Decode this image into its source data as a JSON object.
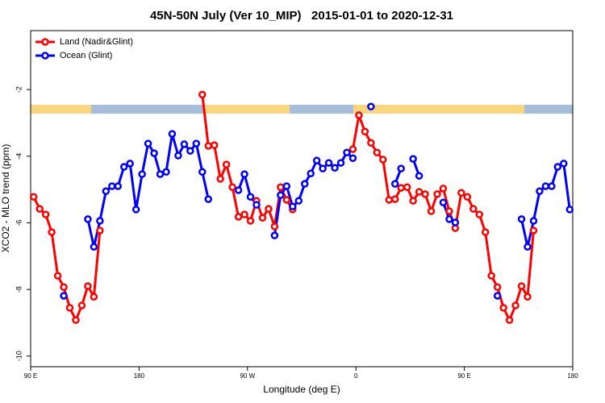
{
  "chart_data": {
    "type": "line",
    "title": "45N-50N July (Ver 10_MIP)   2015-01-01 to 2020-12-31",
    "x_label": "Longitude (deg E)",
    "y_label": "XCO2 - MLO trend (ppm)",
    "legend": "top-left",
    "grid": false,
    "xlim": [
      90,
      540
    ],
    "xticks": [
      {
        "value": 90,
        "label": "90 E"
      },
      180,
      {
        "value": 270,
        "label": "90 W"
      },
      {
        "value": 360,
        "label": "0"
      },
      {
        "value": 450,
        "label": "90 E"
      },
      {
        "value": 540,
        "label": "180"
      }
    ],
    "ylim": [
      -10.32,
      -0.23
    ],
    "yticks": [
      -2,
      -4,
      -6,
      -8,
      -10
    ],
    "x": [
      92.5,
      97.5,
      102.5,
      107.5,
      112.5,
      117.5,
      122.5,
      127.5,
      132.5,
      137.5,
      142.5,
      147.5,
      152.5,
      157.5,
      162.5,
      167.5,
      172.5,
      177.5,
      182.5,
      187.5,
      192.5,
      197.5,
      202.5,
      207.5,
      212.5,
      217.5,
      222.5,
      227.5,
      232.5,
      237.5,
      242.5,
      247.5,
      252.5,
      257.5,
      262.5,
      267.5,
      272.5,
      277.5,
      282.5,
      287.5,
      292.5,
      297.5,
      302.5,
      307.5,
      312.5,
      317.5,
      322.5,
      327.5,
      332.5,
      337.5,
      342.5,
      347.5,
      352.5,
      357.5,
      362.5,
      367.5,
      372.5,
      377.5,
      382.5,
      387.5,
      392.5,
      397.5,
      402.5,
      407.5,
      412.5,
      417.5,
      422.5,
      427.5,
      432.5,
      437.5,
      442.5,
      447.5,
      452.5,
      457.5,
      462.5,
      467.5,
      472.5,
      477.5,
      482.5,
      487.5,
      492.5,
      497.5,
      502.5,
      507.5,
      512.5,
      517.5,
      522.5,
      527.5,
      532.5,
      537.5
    ],
    "series": [
      {
        "name": "Land (Nadir&Glint)",
        "color": "#ff0000",
        "values": [
          -5.22,
          -5.58,
          -5.75,
          -6.28,
          -7.59,
          -7.93,
          -8.55,
          -8.92,
          -8.48,
          -7.9,
          -8.22,
          -6.23,
          null,
          null,
          null,
          null,
          null,
          null,
          null,
          null,
          null,
          null,
          null,
          null,
          null,
          null,
          null,
          null,
          -2.15,
          -3.69,
          -3.67,
          -4.68,
          -4.25,
          -4.93,
          -5.82,
          -5.75,
          -5.94,
          -5.34,
          -5.85,
          -5.58,
          -6.11,
          -4.93,
          -5.31,
          -5.6,
          null,
          null,
          null,
          null,
          null,
          null,
          null,
          null,
          null,
          -3.79,
          -2.77,
          -3.26,
          -3.6,
          -3.89,
          -4.1,
          -5.31,
          -5.29,
          -4.95,
          -4.93,
          -5.34,
          -5.07,
          -5.14,
          -5.65,
          -5.14,
          -4.97,
          -5.65,
          -6.16,
          -5.1,
          -5.22,
          -5.58,
          -5.75,
          -6.28,
          -7.59,
          -7.93,
          -8.55,
          -8.92,
          -8.48,
          -7.9,
          -8.22,
          -6.23,
          null,
          null,
          null,
          null,
          null,
          null
        ]
      },
      {
        "name": "Ocean (Glint)",
        "color": "#0000ff",
        "values": [
          null,
          null,
          null,
          null,
          null,
          -8.19,
          null,
          null,
          null,
          -5.89,
          -6.72,
          -5.94,
          -5.05,
          -4.9,
          -4.9,
          -4.32,
          -4.22,
          -5.6,
          -4.54,
          -3.62,
          -3.91,
          -4.54,
          -4.47,
          -3.33,
          -3.98,
          -3.64,
          -3.84,
          -3.62,
          -4.47,
          -5.29,
          null,
          null,
          null,
          null,
          -5.02,
          -4.54,
          -5.22,
          -5.46,
          null,
          null,
          -6.38,
          -5.17,
          -4.9,
          -5.51,
          -5.34,
          -4.83,
          -4.52,
          -4.13,
          -4.37,
          -4.2,
          -4.35,
          -4.2,
          -3.89,
          -4.06,
          null,
          null,
          -2.51,
          null,
          null,
          null,
          -4.83,
          -4.37,
          null,
          -4.08,
          -4.59,
          null,
          null,
          null,
          -5.39,
          -5.89,
          -5.99,
          null,
          null,
          null,
          null,
          null,
          null,
          -8.19,
          null,
          null,
          null,
          -5.89,
          -6.72,
          -5.94,
          -5.05,
          -4.9,
          -4.9,
          -4.32,
          -4.22,
          -5.6
        ]
      }
    ]
  }
}
